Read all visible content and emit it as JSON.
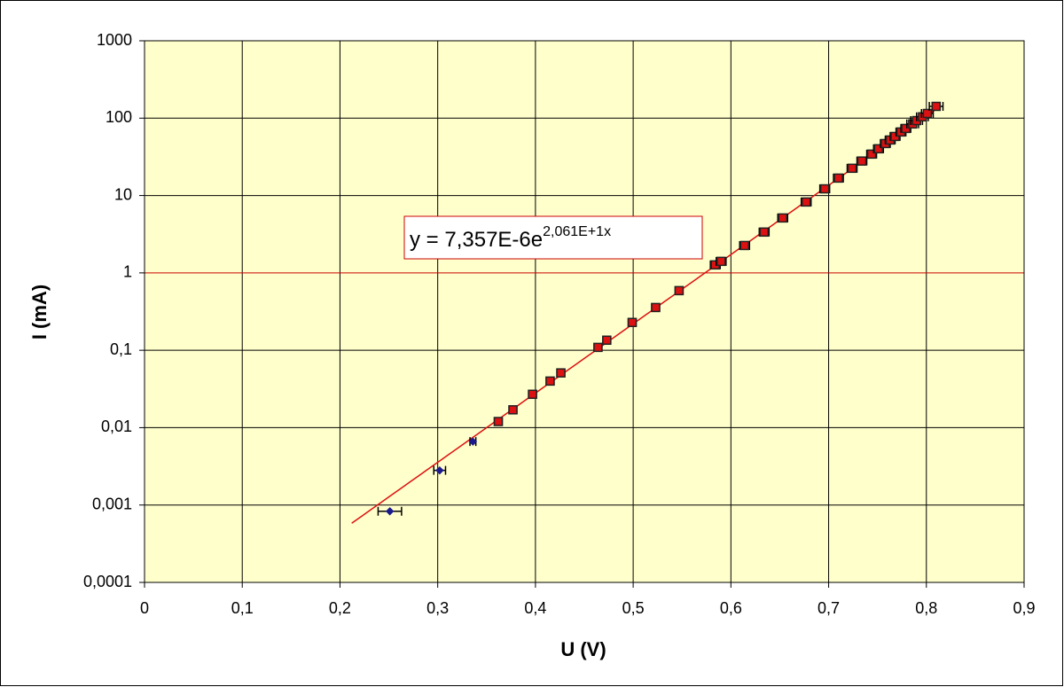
{
  "chart_data": {
    "type": "scatter",
    "x_label": "U  (V)",
    "y_label": "I  (mA)",
    "xlim": [
      0,
      0.9
    ],
    "xticks": [
      0,
      {
        "value": 0.1,
        "label": "0,1"
      },
      {
        "value": 0.2,
        "label": "0,2"
      },
      {
        "value": 0.3,
        "label": "0,3"
      },
      {
        "value": 0.4,
        "label": "0,4"
      },
      {
        "value": 0.5,
        "label": "0,5"
      },
      {
        "value": 0.6,
        "label": "0,6"
      },
      {
        "value": 0.7,
        "label": "0,7"
      },
      {
        "value": 0.8,
        "label": "0,8"
      },
      {
        "value": 0.9,
        "label": "0,9"
      }
    ],
    "ylim": [
      0.0001,
      1000
    ],
    "yticks": [
      {
        "value": 0.0001,
        "label": "0,0001"
      },
      {
        "value": 0.001,
        "label": "0,001"
      },
      {
        "value": 0.01,
        "label": "0,01"
      },
      {
        "value": 0.1,
        "label": "0,1"
      },
      1,
      10,
      100,
      1000
    ],
    "ylog": true,
    "grid": true,
    "grid_color": "#000000",
    "plot_background": "#ffffcc",
    "yref": {
      "value": 1,
      "color": "#cc0000"
    },
    "series": [
      {
        "color": "#1a1a8c",
        "marker": "diamond",
        "x": [
          0.251,
          0.302,
          0.336
        ],
        "values": [
          0.00083,
          0.0028,
          0.0066
        ],
        "xerr": [
          0.012,
          0.006,
          0.003
        ]
      },
      {
        "color": "#dd1111",
        "marker": "square",
        "x": [
          0.362,
          0.377,
          0.397,
          0.415,
          0.426,
          0.464,
          0.473,
          0.499,
          0.523,
          0.547,
          0.584,
          0.59,
          0.614,
          0.634,
          0.653,
          0.677,
          0.696,
          0.71,
          0.724,
          0.734,
          0.744,
          0.751,
          0.758,
          0.763,
          0.768,
          0.774,
          0.779,
          0.786,
          0.79,
          0.796,
          0.801,
          0.81
        ],
        "values": [
          0.012,
          0.017,
          0.027,
          0.04,
          0.051,
          0.109,
          0.135,
          0.229,
          0.357,
          0.59,
          1.27,
          1.41,
          2.26,
          3.37,
          5.13,
          8.25,
          12.2,
          16.8,
          22.5,
          27.9,
          34.3,
          40.2,
          47,
          52.2,
          58,
          66.3,
          73.6,
          84.2,
          93,
          104,
          115,
          142
        ],
        "xerr": [
          0.004,
          0.004,
          0.004,
          0.004,
          0.004,
          0.004,
          0.004,
          0.004,
          0.004,
          0.004,
          0.005,
          0.005,
          0.005,
          0.005,
          0.005,
          0.005,
          0.005,
          0.005,
          0.005,
          0.005,
          0.005,
          0.005,
          0.005,
          0.005,
          0.005,
          0.005,
          0.005,
          0.006,
          0.006,
          0.006,
          0.006,
          0.007
        ]
      }
    ],
    "trendline": {
      "label_base": "y = 7,357E-6e",
      "label_exp": "2,061E+1x",
      "a": 7.357e-06,
      "b": 20.61,
      "x_from": 0.212,
      "x_to": 0.812,
      "color": "#dd1111"
    }
  }
}
